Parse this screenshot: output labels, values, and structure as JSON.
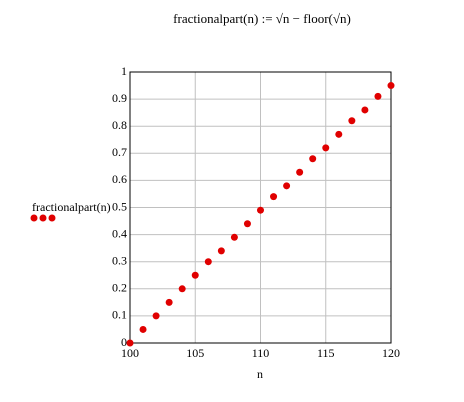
{
  "chart_data": {
    "type": "scatter",
    "title": "fractionalpart(n) := √n − floor(√n)",
    "x_label": "n",
    "y_label": "fractionalpart(n)",
    "x": [
      100,
      101,
      102,
      103,
      104,
      105,
      106,
      107,
      108,
      109,
      110,
      111,
      112,
      113,
      114,
      115,
      116,
      117,
      118,
      119,
      120
    ],
    "series": [
      {
        "color": "#e00000",
        "values": [
          0,
          0.05,
          0.1,
          0.15,
          0.2,
          0.25,
          0.3,
          0.34,
          0.39,
          0.44,
          0.49,
          0.54,
          0.58,
          0.63,
          0.68,
          0.72,
          0.77,
          0.82,
          0.86,
          0.91,
          0.95
        ]
      }
    ],
    "xlim": [
      100,
      120
    ],
    "xticks": [
      100,
      105,
      110,
      115,
      120
    ],
    "ylim": [
      0,
      1
    ],
    "yticks": [
      0,
      0.1,
      0.2,
      0.3,
      0.4,
      0.5,
      0.6,
      0.7,
      0.8,
      0.9,
      1
    ],
    "grid": true
  }
}
